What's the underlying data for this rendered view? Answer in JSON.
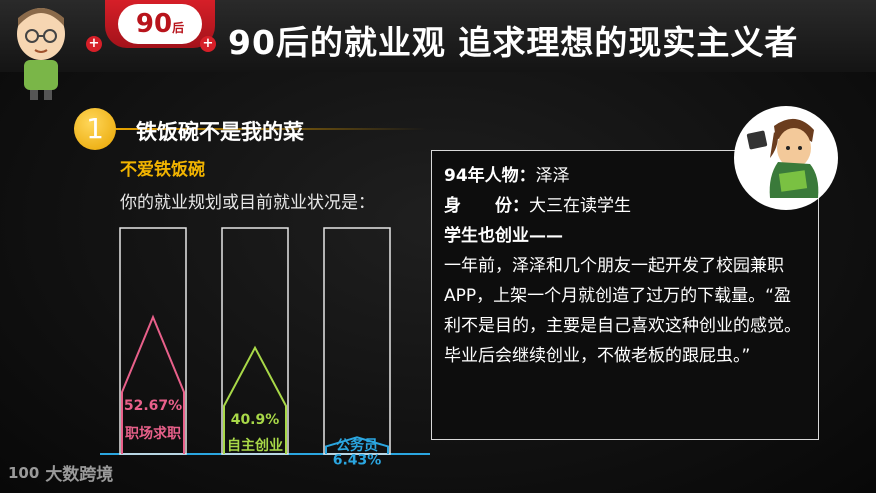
{
  "header": {
    "badge_main": "90",
    "badge_sub": "后",
    "title": "90后的就业观 追求理想的现实主义者"
  },
  "section": {
    "number": "1",
    "title": "铁饭碗不是我的菜",
    "subhead": "不爱铁饭碗",
    "question": "你的就业规划或目前就业状况是："
  },
  "chart_data": {
    "type": "bar",
    "categories": [
      "职场求职",
      "自主创业",
      "公务员"
    ],
    "values": [
      52.67,
      40.9,
      6.43
    ],
    "value_labels": [
      "52.67%",
      "40.9%",
      "6.43%"
    ],
    "colors": {
      "职场求职": "#e8608a",
      "自主创业": "#a8d848",
      "公务员": "#2ba6e0"
    },
    "ylim": [
      0,
      100
    ],
    "title": "",
    "xlabel": "",
    "ylabel": ""
  },
  "profile": {
    "label_name": "94年人物：",
    "name": "泽泽",
    "label_identity": "身　　份：",
    "identity": "大三在读学生",
    "heading": "学生也创业——",
    "body": "一年前，泽泽和几个朋友一起开发了校园兼职APP，上架一个月就创造了过万的下载量。“盈利不是目的，主要是自己喜欢这种创业的感觉。毕业后会继续创业，不做老板的跟屁虫。”"
  },
  "brand": {
    "logo_mark": "100",
    "logo_text": "大数跨境"
  },
  "colors": {
    "accent_red": "#d61f28",
    "accent_gold": "#f2b400"
  }
}
